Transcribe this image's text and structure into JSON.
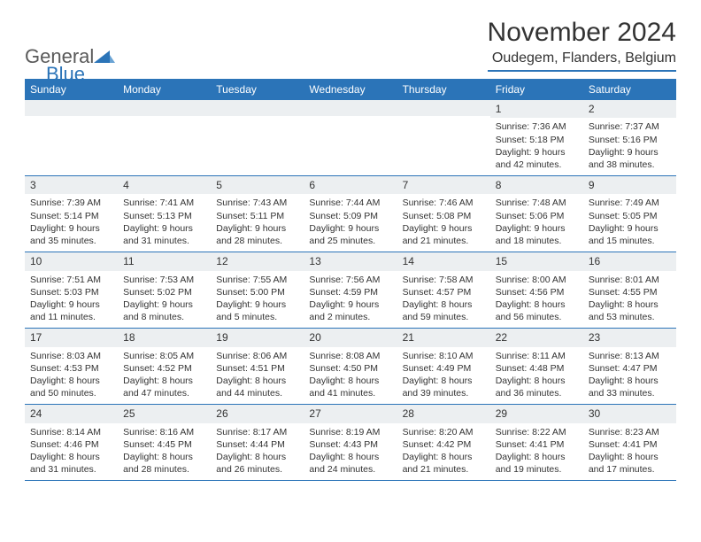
{
  "brand": {
    "part1": "General",
    "part2": "Blue"
  },
  "title": "November 2024",
  "location": "Oudegem, Flanders, Belgium",
  "colors": {
    "accent": "#2b74b8",
    "daynum_bg": "#eceff1",
    "text": "#333333",
    "bg": "#ffffff"
  },
  "weekdays": [
    "Sunday",
    "Monday",
    "Tuesday",
    "Wednesday",
    "Thursday",
    "Friday",
    "Saturday"
  ],
  "weeks": [
    [
      null,
      null,
      null,
      null,
      null,
      {
        "n": "1",
        "sr": "Sunrise: 7:36 AM",
        "ss": "Sunset: 5:18 PM",
        "d1": "Daylight: 9 hours",
        "d2": "and 42 minutes."
      },
      {
        "n": "2",
        "sr": "Sunrise: 7:37 AM",
        "ss": "Sunset: 5:16 PM",
        "d1": "Daylight: 9 hours",
        "d2": "and 38 minutes."
      }
    ],
    [
      {
        "n": "3",
        "sr": "Sunrise: 7:39 AM",
        "ss": "Sunset: 5:14 PM",
        "d1": "Daylight: 9 hours",
        "d2": "and 35 minutes."
      },
      {
        "n": "4",
        "sr": "Sunrise: 7:41 AM",
        "ss": "Sunset: 5:13 PM",
        "d1": "Daylight: 9 hours",
        "d2": "and 31 minutes."
      },
      {
        "n": "5",
        "sr": "Sunrise: 7:43 AM",
        "ss": "Sunset: 5:11 PM",
        "d1": "Daylight: 9 hours",
        "d2": "and 28 minutes."
      },
      {
        "n": "6",
        "sr": "Sunrise: 7:44 AM",
        "ss": "Sunset: 5:09 PM",
        "d1": "Daylight: 9 hours",
        "d2": "and 25 minutes."
      },
      {
        "n": "7",
        "sr": "Sunrise: 7:46 AM",
        "ss": "Sunset: 5:08 PM",
        "d1": "Daylight: 9 hours",
        "d2": "and 21 minutes."
      },
      {
        "n": "8",
        "sr": "Sunrise: 7:48 AM",
        "ss": "Sunset: 5:06 PM",
        "d1": "Daylight: 9 hours",
        "d2": "and 18 minutes."
      },
      {
        "n": "9",
        "sr": "Sunrise: 7:49 AM",
        "ss": "Sunset: 5:05 PM",
        "d1": "Daylight: 9 hours",
        "d2": "and 15 minutes."
      }
    ],
    [
      {
        "n": "10",
        "sr": "Sunrise: 7:51 AM",
        "ss": "Sunset: 5:03 PM",
        "d1": "Daylight: 9 hours",
        "d2": "and 11 minutes."
      },
      {
        "n": "11",
        "sr": "Sunrise: 7:53 AM",
        "ss": "Sunset: 5:02 PM",
        "d1": "Daylight: 9 hours",
        "d2": "and 8 minutes."
      },
      {
        "n": "12",
        "sr": "Sunrise: 7:55 AM",
        "ss": "Sunset: 5:00 PM",
        "d1": "Daylight: 9 hours",
        "d2": "and 5 minutes."
      },
      {
        "n": "13",
        "sr": "Sunrise: 7:56 AM",
        "ss": "Sunset: 4:59 PM",
        "d1": "Daylight: 9 hours",
        "d2": "and 2 minutes."
      },
      {
        "n": "14",
        "sr": "Sunrise: 7:58 AM",
        "ss": "Sunset: 4:57 PM",
        "d1": "Daylight: 8 hours",
        "d2": "and 59 minutes."
      },
      {
        "n": "15",
        "sr": "Sunrise: 8:00 AM",
        "ss": "Sunset: 4:56 PM",
        "d1": "Daylight: 8 hours",
        "d2": "and 56 minutes."
      },
      {
        "n": "16",
        "sr": "Sunrise: 8:01 AM",
        "ss": "Sunset: 4:55 PM",
        "d1": "Daylight: 8 hours",
        "d2": "and 53 minutes."
      }
    ],
    [
      {
        "n": "17",
        "sr": "Sunrise: 8:03 AM",
        "ss": "Sunset: 4:53 PM",
        "d1": "Daylight: 8 hours",
        "d2": "and 50 minutes."
      },
      {
        "n": "18",
        "sr": "Sunrise: 8:05 AM",
        "ss": "Sunset: 4:52 PM",
        "d1": "Daylight: 8 hours",
        "d2": "and 47 minutes."
      },
      {
        "n": "19",
        "sr": "Sunrise: 8:06 AM",
        "ss": "Sunset: 4:51 PM",
        "d1": "Daylight: 8 hours",
        "d2": "and 44 minutes."
      },
      {
        "n": "20",
        "sr": "Sunrise: 8:08 AM",
        "ss": "Sunset: 4:50 PM",
        "d1": "Daylight: 8 hours",
        "d2": "and 41 minutes."
      },
      {
        "n": "21",
        "sr": "Sunrise: 8:10 AM",
        "ss": "Sunset: 4:49 PM",
        "d1": "Daylight: 8 hours",
        "d2": "and 39 minutes."
      },
      {
        "n": "22",
        "sr": "Sunrise: 8:11 AM",
        "ss": "Sunset: 4:48 PM",
        "d1": "Daylight: 8 hours",
        "d2": "and 36 minutes."
      },
      {
        "n": "23",
        "sr": "Sunrise: 8:13 AM",
        "ss": "Sunset: 4:47 PM",
        "d1": "Daylight: 8 hours",
        "d2": "and 33 minutes."
      }
    ],
    [
      {
        "n": "24",
        "sr": "Sunrise: 8:14 AM",
        "ss": "Sunset: 4:46 PM",
        "d1": "Daylight: 8 hours",
        "d2": "and 31 minutes."
      },
      {
        "n": "25",
        "sr": "Sunrise: 8:16 AM",
        "ss": "Sunset: 4:45 PM",
        "d1": "Daylight: 8 hours",
        "d2": "and 28 minutes."
      },
      {
        "n": "26",
        "sr": "Sunrise: 8:17 AM",
        "ss": "Sunset: 4:44 PM",
        "d1": "Daylight: 8 hours",
        "d2": "and 26 minutes."
      },
      {
        "n": "27",
        "sr": "Sunrise: 8:19 AM",
        "ss": "Sunset: 4:43 PM",
        "d1": "Daylight: 8 hours",
        "d2": "and 24 minutes."
      },
      {
        "n": "28",
        "sr": "Sunrise: 8:20 AM",
        "ss": "Sunset: 4:42 PM",
        "d1": "Daylight: 8 hours",
        "d2": "and 21 minutes."
      },
      {
        "n": "29",
        "sr": "Sunrise: 8:22 AM",
        "ss": "Sunset: 4:41 PM",
        "d1": "Daylight: 8 hours",
        "d2": "and 19 minutes."
      },
      {
        "n": "30",
        "sr": "Sunrise: 8:23 AM",
        "ss": "Sunset: 4:41 PM",
        "d1": "Daylight: 8 hours",
        "d2": "and 17 minutes."
      }
    ]
  ]
}
